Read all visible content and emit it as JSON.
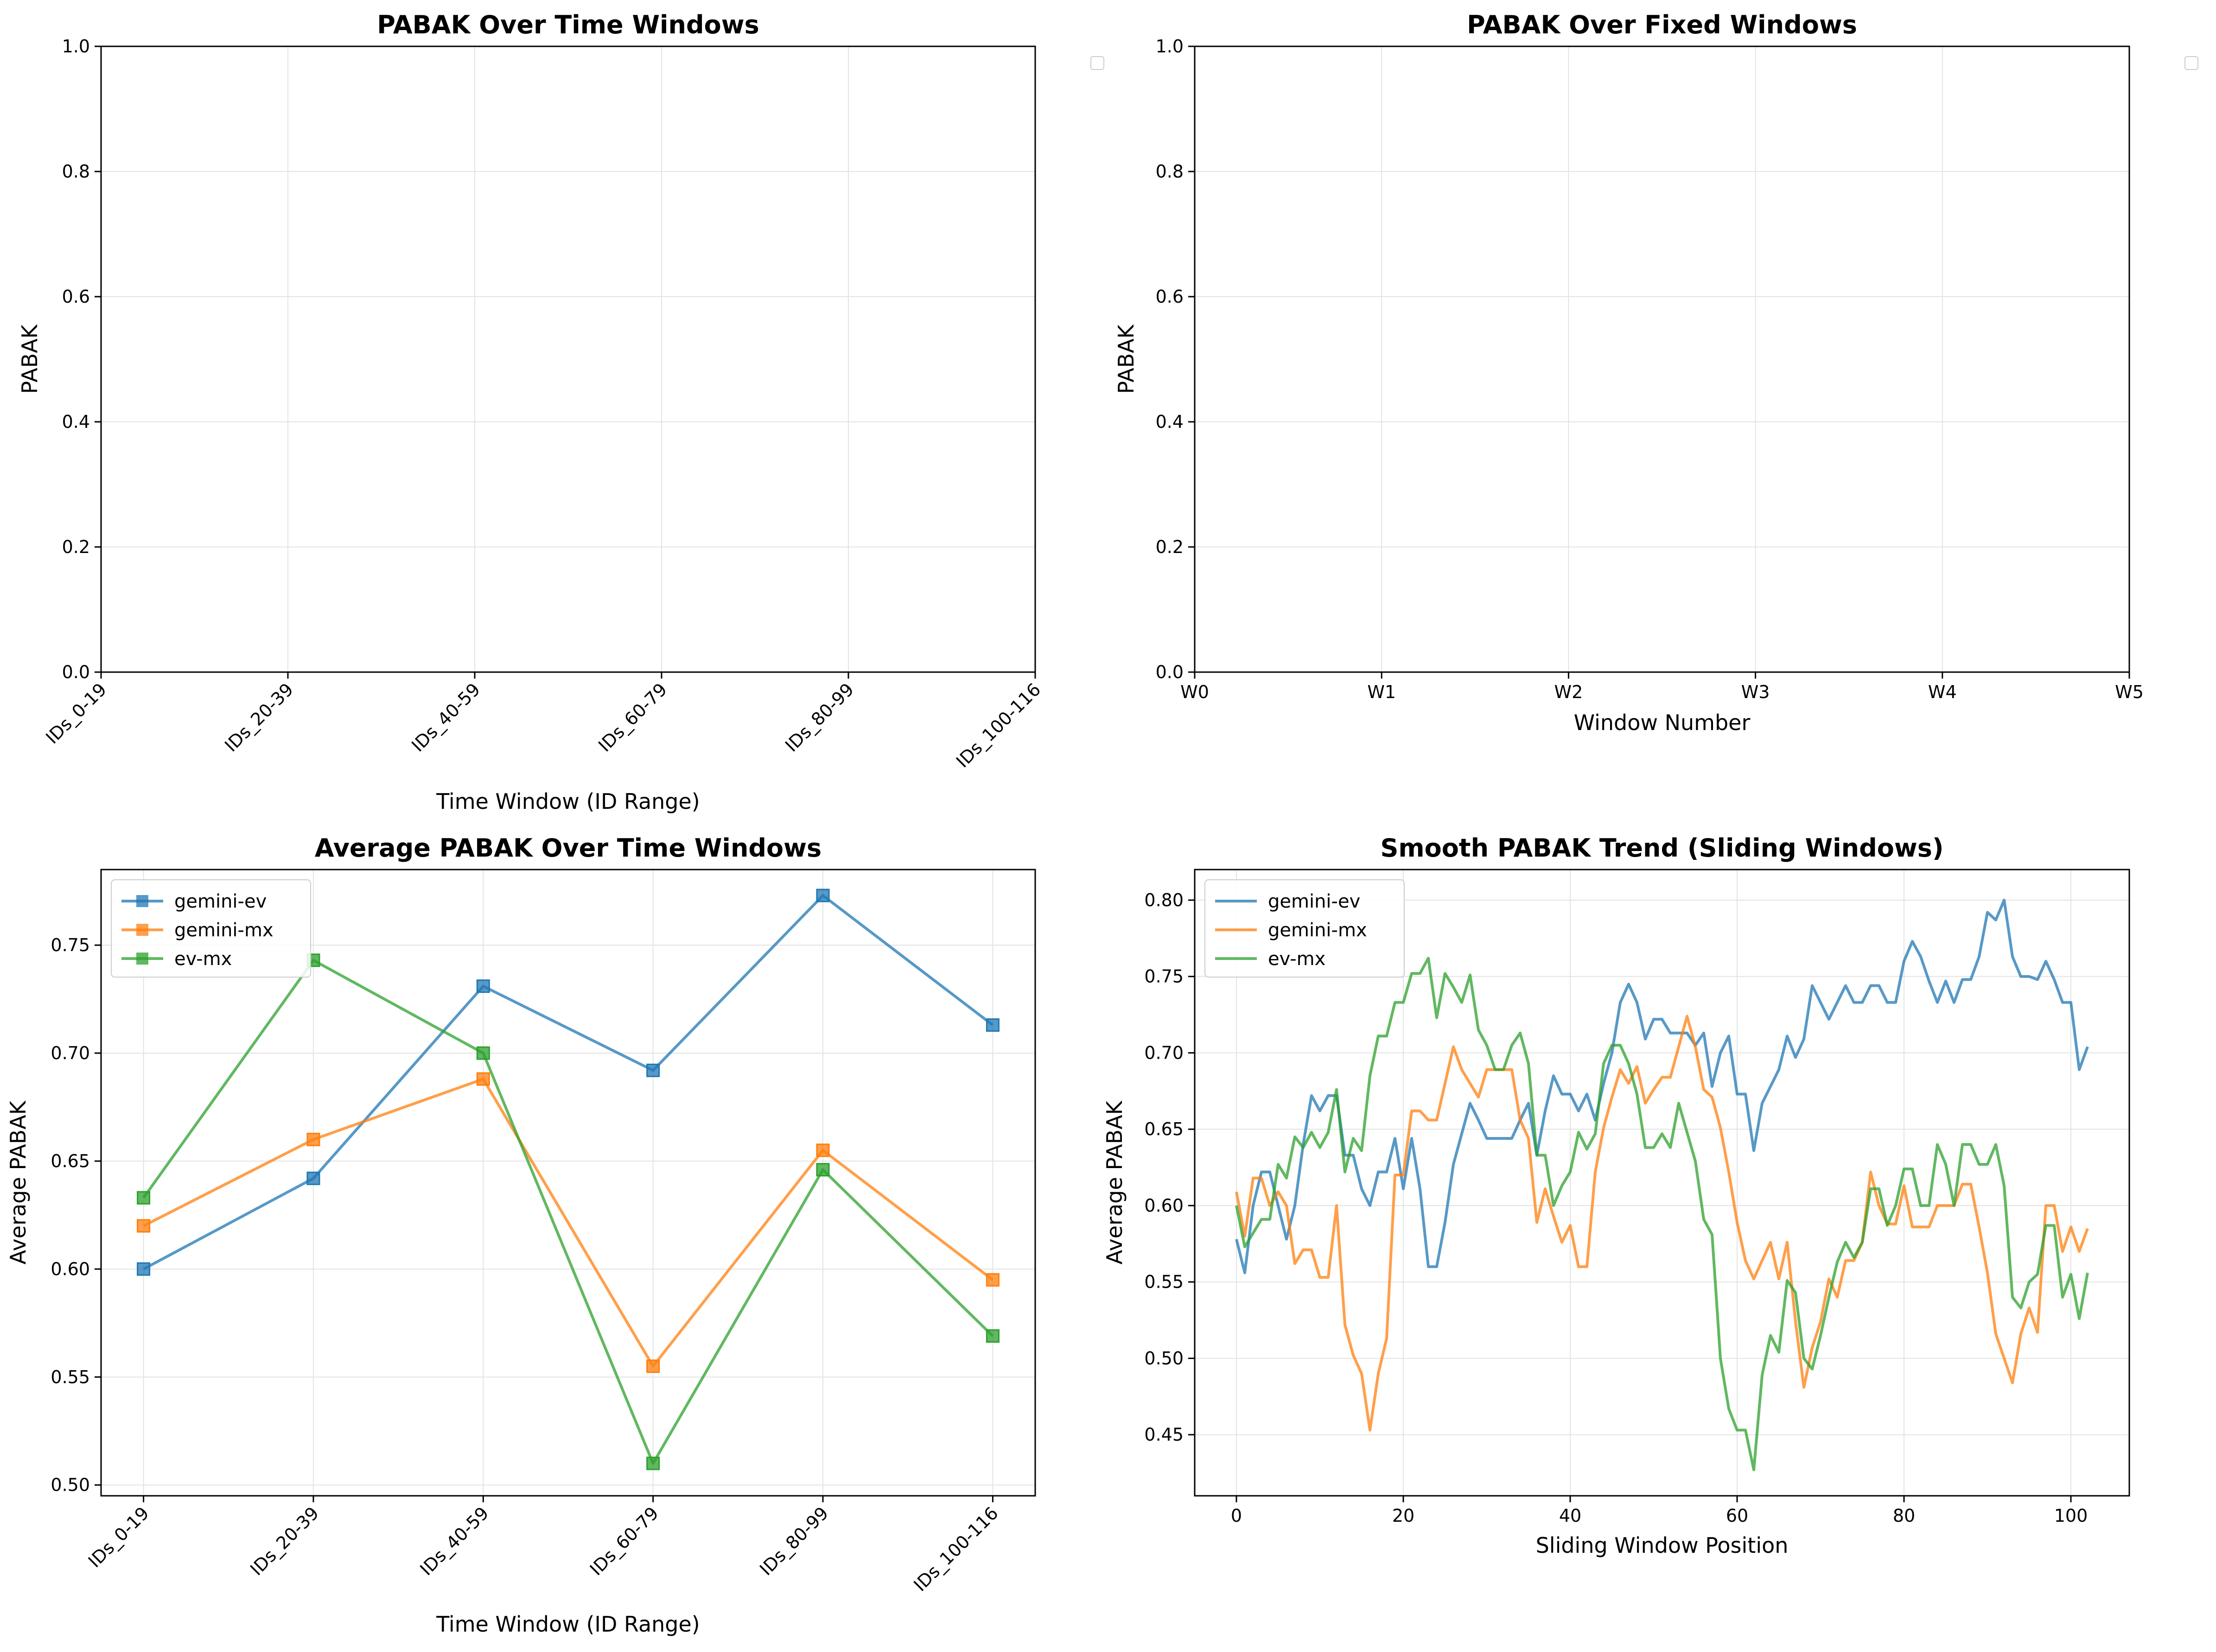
{
  "chart_data": [
    {
      "type": "line",
      "title": "PABAK Over Time Windows",
      "xlabel": "Time Window (ID Range)",
      "ylabel": "PABAK",
      "categories": [
        "IDs_0-19",
        "IDs_20-39",
        "IDs_40-59",
        "IDs_60-79",
        "IDs_80-99",
        "IDs_100-116"
      ],
      "ylim": [
        0,
        1
      ],
      "yticks": [
        "0.0",
        "0.2",
        "0.4",
        "0.6",
        "0.8",
        "1.0"
      ],
      "series": [],
      "grid": true,
      "legend": "empty, outside top-right"
    },
    {
      "type": "line",
      "title": "PABAK Over Fixed Windows",
      "xlabel": "Window Number",
      "ylabel": "PABAK",
      "categories": [
        "W0",
        "W1",
        "W2",
        "W3",
        "W4",
        "W5"
      ],
      "ylim": [
        0,
        1
      ],
      "yticks": [
        "0.0",
        "0.2",
        "0.4",
        "0.6",
        "0.8",
        "1.0"
      ],
      "series": [],
      "grid": true,
      "legend": "empty, outside top-right"
    },
    {
      "type": "line",
      "title": "Average PABAK Over Time Windows",
      "xlabel": "Time Window (ID Range)",
      "ylabel": "Average PABAK",
      "categories": [
        "IDs_0-19",
        "IDs_20-39",
        "IDs_40-59",
        "IDs_60-79",
        "IDs_80-99",
        "IDs_100-116"
      ],
      "ylim": [
        0.495,
        0.785
      ],
      "yticks": [
        "0.50",
        "0.55",
        "0.60",
        "0.65",
        "0.70",
        "0.75"
      ],
      "series": [
        {
          "name": "gemini-ev",
          "color": "#1f77b4",
          "marker": "square",
          "values": [
            0.6,
            0.642,
            0.731,
            0.692,
            0.773,
            0.713
          ]
        },
        {
          "name": "gemini-mx",
          "color": "#ff7f0e",
          "marker": "square",
          "values": [
            0.62,
            0.66,
            0.688,
            0.555,
            0.655,
            0.595
          ]
        },
        {
          "name": "ev-mx",
          "color": "#2ca02c",
          "marker": "square",
          "values": [
            0.633,
            0.743,
            0.7,
            0.51,
            0.646,
            0.569
          ]
        }
      ],
      "grid": true,
      "legend": "top-left"
    },
    {
      "type": "line",
      "title": "Smooth PABAK Trend (Sliding Windows)",
      "xlabel": "Sliding Window Position",
      "ylabel": "Average PABAK",
      "xlim": [
        -5,
        107
      ],
      "ylim": [
        0.41,
        0.82
      ],
      "xticks": [
        0,
        20,
        40,
        60,
        80,
        100
      ],
      "yticks": [
        "0.45",
        "0.50",
        "0.55",
        "0.60",
        "0.65",
        "0.70",
        "0.75",
        "0.80"
      ],
      "series": [
        {
          "name": "gemini-ev",
          "color": "#1f77b4",
          "values": [
            0.578,
            0.556,
            0.6,
            0.622,
            0.622,
            0.6,
            0.578,
            0.6,
            0.64,
            0.672,
            0.662,
            0.672,
            0.672,
            0.633,
            0.633,
            0.611,
            0.6,
            0.622,
            0.622,
            0.644,
            0.611,
            0.644,
            0.611,
            0.56,
            0.56,
            0.589,
            0.627,
            0.647,
            0.667,
            0.656,
            0.644,
            0.644,
            0.644,
            0.644,
            0.656,
            0.667,
            0.633,
            0.662,
            0.685,
            0.673,
            0.673,
            0.662,
            0.673,
            0.656,
            0.68,
            0.7,
            0.733,
            0.745,
            0.733,
            0.709,
            0.722,
            0.722,
            0.713,
            0.713,
            0.713,
            0.705,
            0.713,
            0.678,
            0.7,
            0.711,
            0.673,
            0.673,
            0.636,
            0.667,
            0.678,
            0.689,
            0.711,
            0.697,
            0.709,
            0.744,
            0.733,
            0.722,
            0.733,
            0.744,
            0.733,
            0.733,
            0.744,
            0.744,
            0.733,
            0.733,
            0.76,
            0.773,
            0.763,
            0.747,
            0.733,
            0.747,
            0.733,
            0.748,
            0.748,
            0.763,
            0.792,
            0.787,
            0.8,
            0.763,
            0.75,
            0.75,
            0.748,
            0.76,
            0.748,
            0.733,
            0.733,
            0.689,
            0.704
          ]
        },
        {
          "name": "gemini-mx",
          "color": "#ff7f0e",
          "values": [
            0.609,
            0.58,
            0.618,
            0.618,
            0.6,
            0.609,
            0.6,
            0.562,
            0.571,
            0.571,
            0.553,
            0.553,
            0.6,
            0.522,
            0.502,
            0.49,
            0.453,
            0.49,
            0.513,
            0.62,
            0.62,
            0.662,
            0.662,
            0.656,
            0.656,
            0.68,
            0.704,
            0.689,
            0.68,
            0.671,
            0.689,
            0.689,
            0.689,
            0.689,
            0.656,
            0.644,
            0.589,
            0.611,
            0.593,
            0.576,
            0.587,
            0.56,
            0.56,
            0.622,
            0.651,
            0.671,
            0.689,
            0.68,
            0.691,
            0.667,
            0.676,
            0.684,
            0.684,
            0.704,
            0.724,
            0.704,
            0.676,
            0.671,
            0.651,
            0.622,
            0.589,
            0.564,
            0.552,
            0.564,
            0.576,
            0.552,
            0.576,
            0.524,
            0.481,
            0.507,
            0.524,
            0.552,
            0.54,
            0.564,
            0.564,
            0.576,
            0.622,
            0.6,
            0.588,
            0.588,
            0.613,
            0.586,
            0.586,
            0.586,
            0.6,
            0.6,
            0.6,
            0.614,
            0.614,
            0.586,
            0.556,
            0.516,
            0.5,
            0.484,
            0.516,
            0.533,
            0.517,
            0.6,
            0.6,
            0.57,
            0.586,
            0.57,
            0.585
          ]
        },
        {
          "name": "ev-mx",
          "color": "#2ca02c",
          "values": [
            0.6,
            0.573,
            0.582,
            0.591,
            0.591,
            0.627,
            0.618,
            0.645,
            0.638,
            0.648,
            0.638,
            0.648,
            0.676,
            0.622,
            0.644,
            0.636,
            0.685,
            0.711,
            0.711,
            0.733,
            0.733,
            0.752,
            0.752,
            0.762,
            0.723,
            0.752,
            0.743,
            0.733,
            0.751,
            0.715,
            0.705,
            0.689,
            0.689,
            0.705,
            0.713,
            0.693,
            0.633,
            0.633,
            0.6,
            0.613,
            0.622,
            0.648,
            0.637,
            0.647,
            0.693,
            0.705,
            0.705,
            0.693,
            0.673,
            0.638,
            0.638,
            0.647,
            0.638,
            0.667,
            0.648,
            0.629,
            0.591,
            0.581,
            0.5,
            0.467,
            0.453,
            0.453,
            0.427,
            0.489,
            0.515,
            0.504,
            0.551,
            0.543,
            0.5,
            0.493,
            0.515,
            0.54,
            0.563,
            0.576,
            0.566,
            0.576,
            0.611,
            0.611,
            0.587,
            0.6,
            0.624,
            0.624,
            0.6,
            0.6,
            0.64,
            0.627,
            0.6,
            0.64,
            0.64,
            0.627,
            0.627,
            0.64,
            0.613,
            0.54,
            0.533,
            0.55,
            0.555,
            0.587,
            0.587,
            0.54,
            0.555,
            0.526,
            0.556
          ]
        }
      ],
      "grid": true,
      "legend": "top-left"
    }
  ]
}
